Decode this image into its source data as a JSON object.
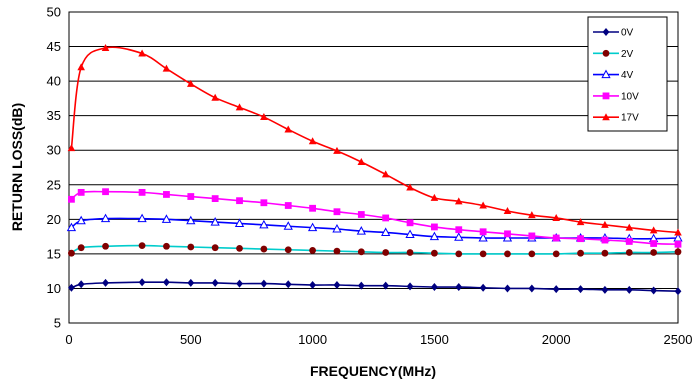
{
  "chart_data": {
    "type": "line",
    "title": "",
    "xlabel": "FREQUENCY(MHz)",
    "ylabel": "RETURN LOSS(dB)",
    "xlim": [
      0,
      2500
    ],
    "ylim": [
      5,
      50
    ],
    "xticks": [
      0,
      500,
      1000,
      1500,
      2000,
      2500
    ],
    "yticks": [
      5,
      10,
      15,
      20,
      25,
      30,
      35,
      40,
      45,
      50
    ],
    "grid": "horizontal",
    "legend_position": "top-right",
    "x": [
      10,
      50,
      150,
      300,
      400,
      500,
      600,
      700,
      800,
      900,
      1000,
      1100,
      1200,
      1300,
      1400,
      1500,
      1600,
      1700,
      1800,
      1900,
      2000,
      2100,
      2200,
      2300,
      2400,
      2500
    ],
    "series": [
      {
        "name": "0V",
        "color": "#000080",
        "line_color": "#000080",
        "marker": "diamond",
        "values": [
          10.1,
          10.6,
          10.8,
          10.9,
          10.9,
          10.8,
          10.8,
          10.7,
          10.7,
          10.6,
          10.5,
          10.5,
          10.4,
          10.4,
          10.3,
          10.2,
          10.2,
          10.1,
          10.0,
          10.0,
          9.9,
          9.9,
          9.8,
          9.8,
          9.7,
          9.6
        ]
      },
      {
        "name": "2V",
        "color": "#800000",
        "line_color": "#00cccc",
        "marker": "circle",
        "values": [
          15.1,
          15.9,
          16.1,
          16.2,
          16.1,
          16.0,
          15.9,
          15.8,
          15.7,
          15.6,
          15.5,
          15.4,
          15.3,
          15.2,
          15.2,
          15.1,
          15.0,
          15.0,
          15.0,
          15.0,
          15.0,
          15.1,
          15.1,
          15.2,
          15.2,
          15.3
        ]
      },
      {
        "name": "4V",
        "color": "#0000ff",
        "line_color": "#0000ff",
        "marker": "triangle-open",
        "values": [
          18.8,
          19.8,
          20.1,
          20.1,
          20.0,
          19.8,
          19.6,
          19.4,
          19.2,
          19.0,
          18.8,
          18.6,
          18.3,
          18.1,
          17.8,
          17.5,
          17.4,
          17.3,
          17.3,
          17.3,
          17.3,
          17.3,
          17.3,
          17.2,
          17.2,
          17.3
        ]
      },
      {
        "name": "10V",
        "color": "#ff00ff",
        "line_color": "#ff00ff",
        "marker": "square",
        "values": [
          22.9,
          23.9,
          24.0,
          23.9,
          23.6,
          23.3,
          23.0,
          22.7,
          22.4,
          22.0,
          21.6,
          21.1,
          20.7,
          20.2,
          19.5,
          18.9,
          18.5,
          18.2,
          17.9,
          17.6,
          17.3,
          17.2,
          17.0,
          16.8,
          16.5,
          16.4
        ]
      },
      {
        "name": "17V",
        "color": "#ff0000",
        "line_color": "#ff0000",
        "marker": "triangle",
        "values": [
          30.3,
          42.0,
          44.8,
          44.0,
          41.8,
          39.6,
          37.6,
          36.2,
          34.8,
          33.0,
          31.3,
          29.9,
          28.3,
          26.5,
          24.6,
          23.1,
          22.6,
          22.0,
          21.2,
          20.6,
          20.2,
          19.6,
          19.2,
          18.8,
          18.4,
          18.1
        ]
      }
    ]
  }
}
